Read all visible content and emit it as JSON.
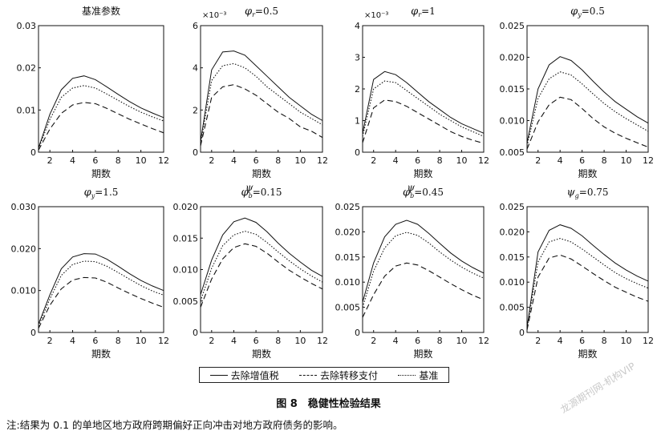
{
  "legend": {
    "items": [
      {
        "label": "去除增值税",
        "style": "solid"
      },
      {
        "label": "去除转移支付",
        "style": "dashed"
      },
      {
        "label": "基准",
        "style": "dotted"
      }
    ]
  },
  "caption": "图 8　稳健性检验结果",
  "note": "注:结果为 0.1 的单地区地方政府跨期偏好正向冲击对地方政府债务的影响。",
  "watermark": "龙源期刊网-机构VIP",
  "chart_data": [
    {
      "type": "line",
      "title": "基准参数",
      "xlabel": "期数",
      "x": [
        1,
        2,
        3,
        4,
        5,
        6,
        7,
        8,
        9,
        10,
        11,
        12
      ],
      "xticks": [
        2,
        4,
        6,
        8,
        10,
        12
      ],
      "ylim": [
        0,
        0.03
      ],
      "yticks": [
        0,
        0.01,
        0.02,
        0.03
      ],
      "ytick_labels": [
        "0",
        "0.01",
        "0.02",
        "0.03"
      ],
      "scale_label": "",
      "series": [
        {
          "name": "去除增值税",
          "style": "solid",
          "values": [
            0.001,
            0.009,
            0.0148,
            0.0175,
            0.0181,
            0.0172,
            0.0155,
            0.0137,
            0.012,
            0.0105,
            0.0093,
            0.0082
          ]
        },
        {
          "name": "去除转移支付",
          "style": "dashed",
          "values": [
            0.0005,
            0.0055,
            0.0092,
            0.0112,
            0.0118,
            0.0115,
            0.0104,
            0.0091,
            0.0078,
            0.0067,
            0.0056,
            0.0046
          ]
        },
        {
          "name": "基准",
          "style": "dotted",
          "values": [
            0.0008,
            0.0078,
            0.013,
            0.0152,
            0.0158,
            0.0152,
            0.0138,
            0.0123,
            0.0108,
            0.0095,
            0.0084,
            0.0074
          ]
        }
      ]
    },
    {
      "type": "line",
      "title_parts": [
        "φ",
        "r",
        "=0.5"
      ],
      "xlabel": "期数",
      "x": [
        1,
        2,
        3,
        4,
        5,
        6,
        7,
        8,
        9,
        10,
        11,
        12
      ],
      "xticks": [
        2,
        4,
        6,
        8,
        10,
        12
      ],
      "ylim": [
        0,
        6
      ],
      "yticks": [
        0,
        2,
        4,
        6
      ],
      "ytick_labels": [
        "0",
        "2",
        "4",
        "6"
      ],
      "scale_label": "×10⁻³",
      "series": [
        {
          "name": "去除增值税",
          "style": "solid",
          "values": [
            0.5,
            3.9,
            4.75,
            4.8,
            4.6,
            4.1,
            3.6,
            3.1,
            2.6,
            2.2,
            1.8,
            1.5
          ]
        },
        {
          "name": "去除转移支付",
          "style": "dashed",
          "values": [
            0.3,
            2.6,
            3.1,
            3.2,
            3.0,
            2.7,
            2.3,
            1.9,
            1.6,
            1.2,
            1.0,
            0.7
          ]
        },
        {
          "name": "基准",
          "style": "dotted",
          "values": [
            0.4,
            3.4,
            4.1,
            4.2,
            4.0,
            3.6,
            3.1,
            2.7,
            2.3,
            1.9,
            1.6,
            1.3
          ]
        }
      ]
    },
    {
      "type": "line",
      "title_parts": [
        "φ",
        "r",
        "=1"
      ],
      "xlabel": "期数",
      "x": [
        1,
        2,
        3,
        4,
        5,
        6,
        7,
        8,
        9,
        10,
        11,
        12
      ],
      "xticks": [
        2,
        4,
        6,
        8,
        10,
        12
      ],
      "ylim": [
        0,
        4
      ],
      "yticks": [
        0,
        1,
        2,
        3,
        4
      ],
      "ytick_labels": [
        "0",
        "1",
        "2",
        "3",
        "4"
      ],
      "scale_label": "×10⁻³",
      "series": [
        {
          "name": "去除增值税",
          "style": "solid",
          "values": [
            0.6,
            2.3,
            2.55,
            2.45,
            2.2,
            1.9,
            1.6,
            1.35,
            1.1,
            0.9,
            0.75,
            0.6
          ]
        },
        {
          "name": "去除转移支付",
          "style": "dashed",
          "values": [
            0.3,
            1.4,
            1.65,
            1.6,
            1.45,
            1.25,
            1.05,
            0.85,
            0.65,
            0.5,
            0.38,
            0.28
          ]
        },
        {
          "name": "基准",
          "style": "dotted",
          "values": [
            0.5,
            2.0,
            2.25,
            2.2,
            1.95,
            1.7,
            1.45,
            1.2,
            1.0,
            0.8,
            0.65,
            0.5
          ]
        }
      ]
    },
    {
      "type": "line",
      "title_parts": [
        "φ",
        "y",
        "=0.5"
      ],
      "xlabel": "期数",
      "x": [
        1,
        2,
        3,
        4,
        5,
        6,
        7,
        8,
        9,
        10,
        11,
        12
      ],
      "xticks": [
        2,
        4,
        6,
        8,
        10,
        12
      ],
      "ylim": [
        0.005,
        0.025
      ],
      "yticks": [
        0.005,
        0.01,
        0.015,
        0.02,
        0.025
      ],
      "ytick_labels": [
        "0.005",
        "0.010",
        "0.015",
        "0.020",
        "0.025"
      ],
      "scale_label": "",
      "series": [
        {
          "name": "去除增值税",
          "style": "solid",
          "values": [
            0.0065,
            0.015,
            0.0188,
            0.0201,
            0.0195,
            0.018,
            0.0162,
            0.0145,
            0.013,
            0.0118,
            0.0106,
            0.0096
          ]
        },
        {
          "name": "去除转移支付",
          "style": "dashed",
          "values": [
            0.0055,
            0.0098,
            0.0125,
            0.0137,
            0.0133,
            0.0119,
            0.0103,
            0.009,
            0.008,
            0.0072,
            0.0065,
            0.0058
          ]
        },
        {
          "name": "基准",
          "style": "dotted",
          "values": [
            0.006,
            0.0135,
            0.0166,
            0.0177,
            0.0172,
            0.0158,
            0.0142,
            0.0127,
            0.0114,
            0.0103,
            0.0093,
            0.0083
          ]
        }
      ]
    },
    {
      "type": "line",
      "title_parts": [
        "φ",
        "y",
        "=1.5"
      ],
      "xlabel": "期数",
      "x": [
        1,
        2,
        3,
        4,
        5,
        6,
        7,
        8,
        9,
        10,
        11,
        12
      ],
      "xticks": [
        2,
        4,
        6,
        8,
        10,
        12
      ],
      "ylim": [
        0,
        0.03
      ],
      "yticks": [
        0,
        0.01,
        0.02,
        0.03
      ],
      "ytick_labels": [
        "0",
        "0.010",
        "0.020",
        "0.030"
      ],
      "scale_label": "",
      "series": [
        {
          "name": "去除增值税",
          "style": "solid",
          "values": [
            0.002,
            0.009,
            0.0152,
            0.018,
            0.0188,
            0.0187,
            0.0175,
            0.0158,
            0.014,
            0.0124,
            0.0111,
            0.01
          ]
        },
        {
          "name": "去除转移支付",
          "style": "dashed",
          "values": [
            0.001,
            0.0065,
            0.0104,
            0.0125,
            0.0131,
            0.013,
            0.012,
            0.0106,
            0.0093,
            0.0081,
            0.007,
            0.006
          ]
        },
        {
          "name": "基准",
          "style": "dotted",
          "values": [
            0.0015,
            0.008,
            0.0136,
            0.0162,
            0.017,
            0.0169,
            0.0158,
            0.0143,
            0.0127,
            0.0112,
            0.0099,
            0.0089
          ]
        }
      ]
    },
    {
      "type": "line",
      "title_parts": [
        "φ",
        "b",
        "=0.15",
        "ψ"
      ],
      "xlabel": "期数",
      "x": [
        1,
        2,
        3,
        4,
        5,
        6,
        7,
        8,
        9,
        10,
        11,
        12
      ],
      "xticks": [
        2,
        4,
        6,
        8,
        10,
        12
      ],
      "ylim": [
        0,
        0.02
      ],
      "yticks": [
        0,
        0.005,
        0.01,
        0.015,
        0.02
      ],
      "ytick_labels": [
        "0",
        "0.005",
        "0.010",
        "0.015",
        "0.020"
      ],
      "scale_label": "",
      "series": [
        {
          "name": "去除增值税",
          "style": "solid",
          "values": [
            0.006,
            0.0115,
            0.0155,
            0.0176,
            0.0182,
            0.0175,
            0.016,
            0.0142,
            0.0126,
            0.0112,
            0.0099,
            0.0089
          ]
        },
        {
          "name": "去除转移支付",
          "style": "dashed",
          "values": [
            0.004,
            0.0085,
            0.0117,
            0.0135,
            0.0141,
            0.0137,
            0.0126,
            0.0112,
            0.0099,
            0.0088,
            0.0078,
            0.0069
          ]
        },
        {
          "name": "基准",
          "style": "dotted",
          "values": [
            0.005,
            0.0102,
            0.0138,
            0.0155,
            0.0161,
            0.0156,
            0.0143,
            0.0128,
            0.0114,
            0.0101,
            0.009,
            0.008
          ]
        }
      ]
    },
    {
      "type": "line",
      "title_parts": [
        "φ",
        "b",
        "=0.45",
        "ψ"
      ],
      "xlabel": "期数",
      "x": [
        1,
        2,
        3,
        4,
        5,
        6,
        7,
        8,
        9,
        10,
        11,
        12
      ],
      "xticks": [
        2,
        4,
        6,
        8,
        10,
        12
      ],
      "ylim": [
        0,
        0.025
      ],
      "yticks": [
        0,
        0.005,
        0.01,
        0.015,
        0.02,
        0.025
      ],
      "ytick_labels": [
        "0",
        "0.005",
        "0.010",
        "0.015",
        "0.020",
        "0.025"
      ],
      "scale_label": "",
      "series": [
        {
          "name": "去除增值税",
          "style": "solid",
          "values": [
            0.006,
            0.0138,
            0.019,
            0.0215,
            0.0223,
            0.0215,
            0.0197,
            0.0177,
            0.0158,
            0.0142,
            0.0129,
            0.0118
          ]
        },
        {
          "name": "去除转移支付",
          "style": "dashed",
          "values": [
            0.003,
            0.0075,
            0.0112,
            0.0132,
            0.0138,
            0.0134,
            0.0123,
            0.011,
            0.0097,
            0.0085,
            0.0074,
            0.0065
          ]
        },
        {
          "name": "基准",
          "style": "dotted",
          "values": [
            0.005,
            0.0122,
            0.0168,
            0.0192,
            0.0199,
            0.0193,
            0.0178,
            0.016,
            0.0144,
            0.013,
            0.0118,
            0.0108
          ]
        }
      ]
    },
    {
      "type": "line",
      "title_parts": [
        "ψ",
        "g",
        "=0.75"
      ],
      "xlabel": "期数",
      "x": [
        1,
        2,
        3,
        4,
        5,
        6,
        7,
        8,
        9,
        10,
        11,
        12
      ],
      "xticks": [
        2,
        4,
        6,
        8,
        10,
        12
      ],
      "ylim": [
        0,
        0.025
      ],
      "yticks": [
        0,
        0.005,
        0.01,
        0.015,
        0.02,
        0.025
      ],
      "ytick_labels": [
        "0",
        "0.005",
        "0.010",
        "0.015",
        "0.020",
        "0.025"
      ],
      "scale_label": "",
      "series": [
        {
          "name": "去除增值税",
          "style": "solid",
          "values": [
            0.001,
            0.016,
            0.0203,
            0.0214,
            0.0207,
            0.0192,
            0.0173,
            0.0155,
            0.0138,
            0.0124,
            0.0112,
            0.0102
          ]
        },
        {
          "name": "去除转移支付",
          "style": "dashed",
          "values": [
            0.0005,
            0.011,
            0.0148,
            0.0154,
            0.0146,
            0.0132,
            0.0117,
            0.0103,
            0.009,
            0.008,
            0.007,
            0.0062
          ]
        },
        {
          "name": "基准",
          "style": "dotted",
          "values": [
            0.0008,
            0.014,
            0.018,
            0.0187,
            0.018,
            0.0166,
            0.015,
            0.0134,
            0.0119,
            0.0107,
            0.0097,
            0.0088
          ]
        }
      ]
    }
  ]
}
